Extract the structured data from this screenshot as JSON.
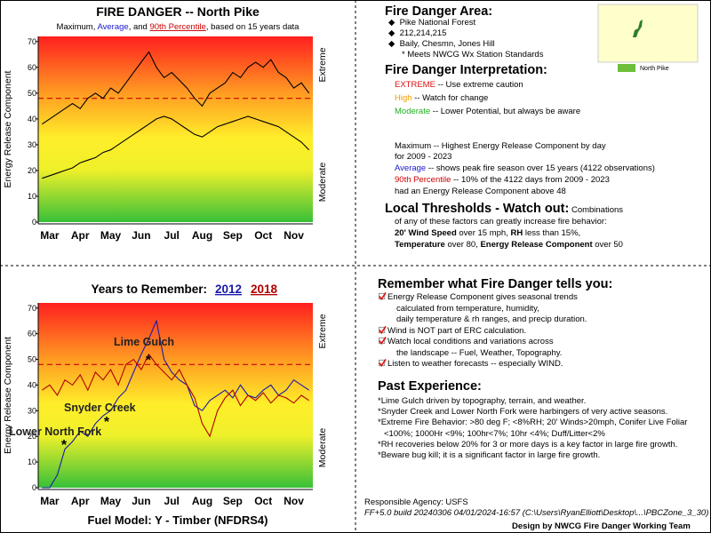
{
  "chart_data": [
    {
      "type": "line",
      "title": "FIRE DANGER -- North Pike",
      "subtitle_parts": [
        ", ",
        ", and ",
        ", based on 15 years data"
      ],
      "categories": [
        null,
        "Mar",
        null,
        null,
        null,
        "Apr",
        null,
        null,
        null,
        "May",
        null,
        null,
        null,
        "Jun",
        null,
        null,
        null,
        "Jul",
        null,
        null,
        null,
        "Aug",
        null,
        null,
        null,
        "Sep",
        null,
        null,
        null,
        "Oct",
        null,
        null,
        null,
        "Nov",
        null,
        null
      ],
      "series": [
        {
          "name": "Maximum",
          "color": "#000000",
          "label_color": "#000000",
          "values": [
            38,
            40,
            42,
            44,
            46,
            44,
            48,
            50,
            48,
            52,
            50,
            54,
            58,
            62,
            66,
            60,
            56,
            58,
            55,
            52,
            48,
            45,
            50,
            52,
            54,
            58,
            56,
            60,
            62,
            60,
            63,
            58,
            56,
            52,
            54,
            50
          ]
        },
        {
          "name": "Average",
          "color": "#000000",
          "label_color": "#1a1acc",
          "values": [
            17,
            18,
            19,
            20,
            21,
            23,
            24,
            25,
            27,
            28,
            30,
            32,
            34,
            36,
            38,
            40,
            41,
            40,
            38,
            36,
            34,
            33,
            35,
            37,
            38,
            39,
            40,
            41,
            40,
            39,
            38,
            37,
            35,
            33,
            31,
            28
          ]
        }
      ],
      "reference_line": {
        "name": "90th Percentile",
        "value": 48,
        "color": "#cc0000",
        "label_color": "#cc0000"
      },
      "ylim": [
        0,
        72
      ],
      "yticks": [
        0,
        10,
        20,
        30,
        40,
        50,
        60,
        70
      ],
      "ylabel": "Energy Release Component",
      "zone_labels": [
        "Extreme",
        "Moderate"
      ]
    },
    {
      "type": "line",
      "title": "Years to Remember:",
      "categories": [
        null,
        "Mar",
        null,
        null,
        null,
        "Apr",
        null,
        null,
        null,
        "May",
        null,
        null,
        null,
        "Jun",
        null,
        null,
        null,
        "Jul",
        null,
        null,
        null,
        "Aug",
        null,
        null,
        null,
        "Sep",
        null,
        null,
        null,
        "Oct",
        null,
        null,
        null,
        "Nov",
        null,
        null
      ],
      "series": [
        {
          "name": "2012",
          "color": "#1a1aaa",
          "values": [
            0,
            0,
            5,
            15,
            18,
            22,
            20,
            25,
            28,
            30,
            35,
            38,
            45,
            52,
            58,
            65,
            50,
            45,
            42,
            40,
            32,
            30,
            34,
            36,
            38,
            35,
            40,
            36,
            35,
            38,
            40,
            36,
            38,
            42,
            40,
            38
          ]
        },
        {
          "name": "2018",
          "color": "#b00000",
          "values": [
            38,
            40,
            36,
            42,
            40,
            44,
            38,
            45,
            42,
            46,
            40,
            48,
            50,
            46,
            52,
            48,
            45,
            42,
            46,
            40,
            35,
            25,
            20,
            30,
            35,
            38,
            32,
            36,
            34,
            37,
            33,
            36,
            35,
            33,
            36,
            34
          ]
        }
      ],
      "reference_line": {
        "value": 48,
        "color": "#cc0000"
      },
      "annotations": [
        {
          "text": "Lime Gulch",
          "value": 50
        },
        {
          "text": "Snyder Creek",
          "value": 26
        },
        {
          "text": "Lower North Fork",
          "value": 17
        }
      ],
      "ylim": [
        0,
        72
      ],
      "yticks": [
        0,
        10,
        20,
        30,
        40,
        50,
        60,
        70
      ],
      "ylabel": "Energy Release Component",
      "zone_labels": [
        "Extreme",
        "Moderate"
      ],
      "footer": "Fuel Model: Y - Timber (NFDRS4)"
    }
  ],
  "area": {
    "heading": "Fire Danger Area:",
    "items": [
      "Pike National Forest",
      "212,214,215",
      "Baily, Chesmn, Jones Hill"
    ],
    "note": "* Meets NWCG Wx Station Standards",
    "map_legend": "North Pike"
  },
  "interpretation": {
    "heading": "Fire Danger Interpretation:",
    "levels": [
      [
        "EXTREME",
        " -- Use extreme caution"
      ],
      [
        "High",
        " -- Watch for change"
      ],
      [
        "Moderate",
        " -- Lower Potential, but always be aware"
      ]
    ],
    "definitions": [
      "Maximum  -- Highest Energy Release Component by day",
      "for 2009 - 2023",
      "Average",
      " -- shows peak fire season over 15 years (4122 observations)",
      "90th Percentile",
      " -- 10% of the 4122 days from 2009 - 2023",
      "had an Energy Release Component above 48"
    ]
  },
  "thresholds": {
    "heading": "Local Thresholds - Watch out:",
    "lead": " Combinations",
    "lines": [
      "of any of these factors can greatly increase fire behavior:"
    ],
    "parts": [
      "20' Wind Speed",
      " over 15 mph, ",
      "RH",
      "  less than 15%,",
      "Temperature",
      " over 80, ",
      "Energy Release Component",
      " over 50"
    ]
  },
  "remember": {
    "heading": "Remember what Fire Danger tells you:",
    "items": [
      [
        "Energy Release Component gives seasonal trends",
        "calculated from temperature, humidity,",
        "daily temperature & rh ranges, and precip duration."
      ],
      [
        "Wind is NOT part of ERC calculation."
      ],
      [
        "Watch local conditions and variations across",
        "the landscape -- Fuel, Weather, Topography."
      ],
      [
        "Listen to weather forecasts -- especially WIND."
      ]
    ]
  },
  "past_experience": {
    "heading": "Past Experience:",
    "lines": [
      "*Lime Gulch driven by topography, terrain, and weather.",
      "*Snyder Creek and Lower North Fork were harbingers of very active seasons.",
      "*Extreme Fire Behavior: >80 deg F; <8%RH; 20' Winds>20mph, Conifer Live Foliar",
      "<100%; 1000Hr <9%; 100hr<7%; 10hr <4%; Duff/Litter<2%",
      "*RH recoveries below 20% for 3 or more days is a key factor in large fire growth.",
      "*Beware bug kill; it is a significant factor in large fire growth."
    ]
  },
  "footer": {
    "agency": "Responsible Agency: USFS",
    "build": "FF+5.0 build 20240306 04/01/2024-16:57 (C:\\Users\\RyanElliott\\Desktop\\...\\PBCZone_3_30)",
    "design": "Design by NWCG Fire Danger Working Team"
  }
}
